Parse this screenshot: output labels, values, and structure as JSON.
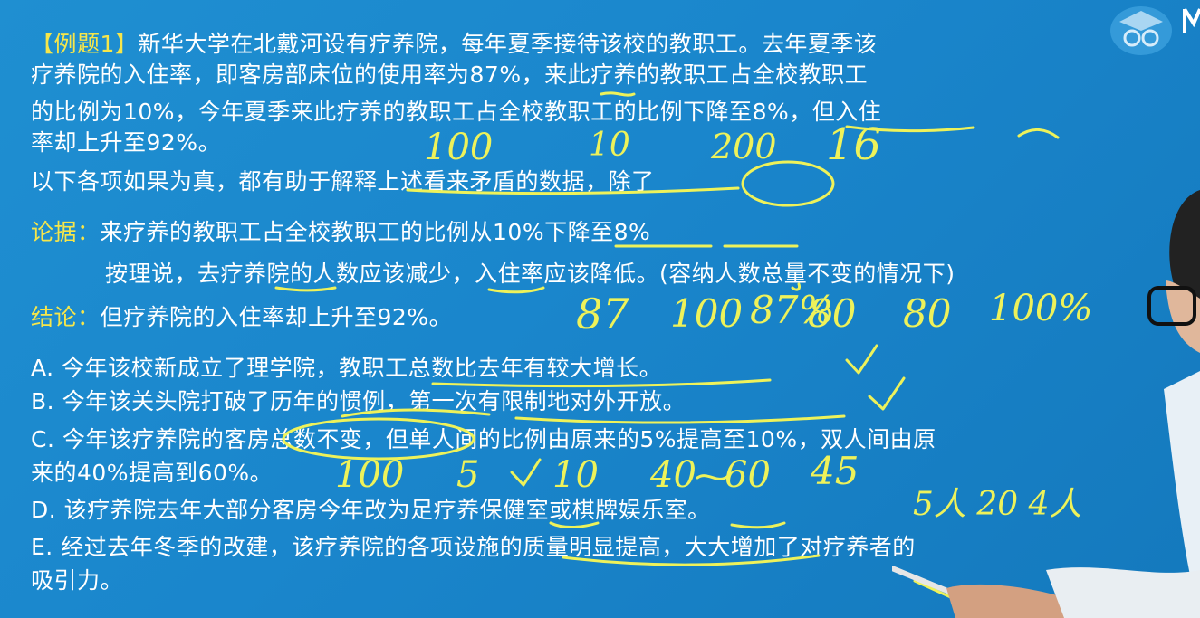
{
  "problem": {
    "tag": "【例题1】",
    "lines": [
      "新华大学在北戴河设有疗养院，每年夏季接待该校的教职工。去年夏季该",
      "疗养院的入住率，即客房部床位的使用率为87%，来此疗养的教职工占全校教职工",
      "的比例为10%，今年夏季来此疗养的教职工占全校教职工的比例下降至8%，但入住",
      "率却上升至92%。",
      "以下各项如果为真，都有助于解释上述看来矛盾的数据，除了"
    ]
  },
  "argument": {
    "label": "论据：",
    "text": "来疗养的教职工占全校教职工的比例从10%下降至8%",
    "reasoning": "按理说，去疗养院的人数应该减少，入住率应该降低。(容纳人数总量不变的情况下)"
  },
  "conclusion": {
    "label": "结论：",
    "text": "但疗养院的入住率却上升至92%。"
  },
  "options": [
    {
      "letter": "A.",
      "text": "今年该校新成立了理学院，教职工总数比去年有较大增长。"
    },
    {
      "letter": "B.",
      "text": "今年该关头院打破了历年的惯例，第一次有限制地对外开放。"
    },
    {
      "letter": "C.",
      "text": "今年该疗养院的客房总数不变，但单人间的比例由原来的5%提高至10%，双人间由原"
    },
    {
      "letter": "",
      "text": "来的40%提高到60%。"
    },
    {
      "letter": "D.",
      "text": "该疗养院去年大部分客房今年改为足疗养保健室或棋牌娱乐室。"
    },
    {
      "letter": "E.",
      "text": "经过去年冬季的改建，该疗养院的各项设施的质量明显提高，大大增加了对疗养者的"
    },
    {
      "letter": "",
      "text": "吸引力。"
    }
  ],
  "handwriting": {
    "row1": [
      "100",
      "10",
      "200",
      "16"
    ],
    "row2": [
      "87",
      "100",
      "87%",
      "80",
      "80",
      "100%"
    ],
    "row3": [
      "100",
      "5",
      "10",
      "40",
      "60",
      "45"
    ],
    "row4": "5人 20 4人"
  },
  "colors": {
    "background": "#1a86cc",
    "text": "#ffffff",
    "label": "#f6e64a",
    "ink": "#eef25a"
  },
  "icons": [
    "owl-logo-icon"
  ]
}
